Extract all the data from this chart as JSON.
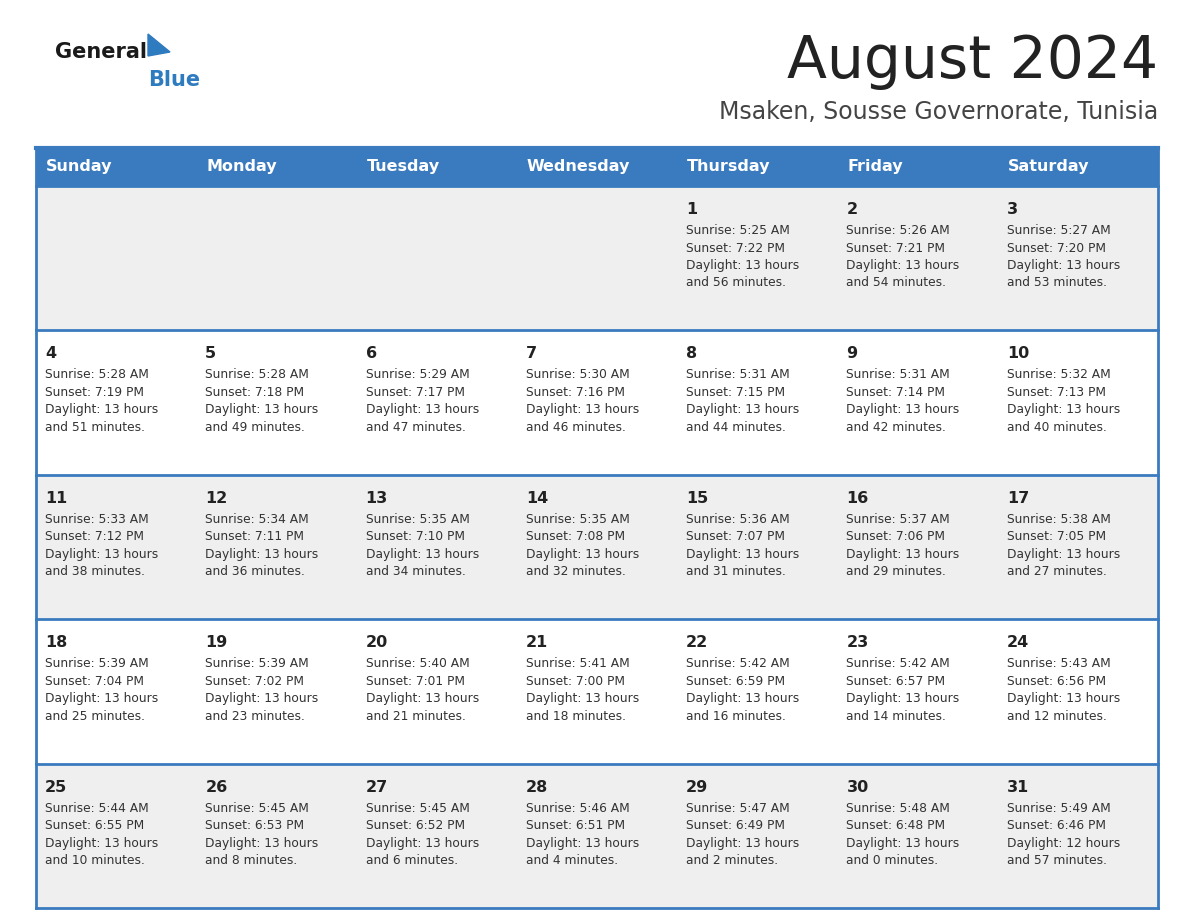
{
  "title": "August 2024",
  "subtitle": "Msaken, Sousse Governorate, Tunisia",
  "days_of_week": [
    "Sunday",
    "Monday",
    "Tuesday",
    "Wednesday",
    "Thursday",
    "Friday",
    "Saturday"
  ],
  "header_bg": "#3a7bbf",
  "header_text": "#ffffff",
  "row_bg_light": "#efefef",
  "row_bg_white": "#ffffff",
  "day_num_color": "#222222",
  "info_color": "#333333",
  "divider_color": "#3a7bbf",
  "title_color": "#222222",
  "subtitle_color": "#444444",
  "logo_color_general": "#1a1a1a",
  "logo_color_blue": "#2e7bbf",
  "logo_triangle_color": "#2e7bbf",
  "cal_data": [
    {
      "day": 1,
      "col": 4,
      "row": 0,
      "sunrise": "5:25 AM",
      "sunset": "7:22 PM",
      "daylight": "13 hours and 56 minutes."
    },
    {
      "day": 2,
      "col": 5,
      "row": 0,
      "sunrise": "5:26 AM",
      "sunset": "7:21 PM",
      "daylight": "13 hours and 54 minutes."
    },
    {
      "day": 3,
      "col": 6,
      "row": 0,
      "sunrise": "5:27 AM",
      "sunset": "7:20 PM",
      "daylight": "13 hours and 53 minutes."
    },
    {
      "day": 4,
      "col": 0,
      "row": 1,
      "sunrise": "5:28 AM",
      "sunset": "7:19 PM",
      "daylight": "13 hours and 51 minutes."
    },
    {
      "day": 5,
      "col": 1,
      "row": 1,
      "sunrise": "5:28 AM",
      "sunset": "7:18 PM",
      "daylight": "13 hours and 49 minutes."
    },
    {
      "day": 6,
      "col": 2,
      "row": 1,
      "sunrise": "5:29 AM",
      "sunset": "7:17 PM",
      "daylight": "13 hours and 47 minutes."
    },
    {
      "day": 7,
      "col": 3,
      "row": 1,
      "sunrise": "5:30 AM",
      "sunset": "7:16 PM",
      "daylight": "13 hours and 46 minutes."
    },
    {
      "day": 8,
      "col": 4,
      "row": 1,
      "sunrise": "5:31 AM",
      "sunset": "7:15 PM",
      "daylight": "13 hours and 44 minutes."
    },
    {
      "day": 9,
      "col": 5,
      "row": 1,
      "sunrise": "5:31 AM",
      "sunset": "7:14 PM",
      "daylight": "13 hours and 42 minutes."
    },
    {
      "day": 10,
      "col": 6,
      "row": 1,
      "sunrise": "5:32 AM",
      "sunset": "7:13 PM",
      "daylight": "13 hours and 40 minutes."
    },
    {
      "day": 11,
      "col": 0,
      "row": 2,
      "sunrise": "5:33 AM",
      "sunset": "7:12 PM",
      "daylight": "13 hours and 38 minutes."
    },
    {
      "day": 12,
      "col": 1,
      "row": 2,
      "sunrise": "5:34 AM",
      "sunset": "7:11 PM",
      "daylight": "13 hours and 36 minutes."
    },
    {
      "day": 13,
      "col": 2,
      "row": 2,
      "sunrise": "5:35 AM",
      "sunset": "7:10 PM",
      "daylight": "13 hours and 34 minutes."
    },
    {
      "day": 14,
      "col": 3,
      "row": 2,
      "sunrise": "5:35 AM",
      "sunset": "7:08 PM",
      "daylight": "13 hours and 32 minutes."
    },
    {
      "day": 15,
      "col": 4,
      "row": 2,
      "sunrise": "5:36 AM",
      "sunset": "7:07 PM",
      "daylight": "13 hours and 31 minutes."
    },
    {
      "day": 16,
      "col": 5,
      "row": 2,
      "sunrise": "5:37 AM",
      "sunset": "7:06 PM",
      "daylight": "13 hours and 29 minutes."
    },
    {
      "day": 17,
      "col": 6,
      "row": 2,
      "sunrise": "5:38 AM",
      "sunset": "7:05 PM",
      "daylight": "13 hours and 27 minutes."
    },
    {
      "day": 18,
      "col": 0,
      "row": 3,
      "sunrise": "5:39 AM",
      "sunset": "7:04 PM",
      "daylight": "13 hours and 25 minutes."
    },
    {
      "day": 19,
      "col": 1,
      "row": 3,
      "sunrise": "5:39 AM",
      "sunset": "7:02 PM",
      "daylight": "13 hours and 23 minutes."
    },
    {
      "day": 20,
      "col": 2,
      "row": 3,
      "sunrise": "5:40 AM",
      "sunset": "7:01 PM",
      "daylight": "13 hours and 21 minutes."
    },
    {
      "day": 21,
      "col": 3,
      "row": 3,
      "sunrise": "5:41 AM",
      "sunset": "7:00 PM",
      "daylight": "13 hours and 18 minutes."
    },
    {
      "day": 22,
      "col": 4,
      "row": 3,
      "sunrise": "5:42 AM",
      "sunset": "6:59 PM",
      "daylight": "13 hours and 16 minutes."
    },
    {
      "day": 23,
      "col": 5,
      "row": 3,
      "sunrise": "5:42 AM",
      "sunset": "6:57 PM",
      "daylight": "13 hours and 14 minutes."
    },
    {
      "day": 24,
      "col": 6,
      "row": 3,
      "sunrise": "5:43 AM",
      "sunset": "6:56 PM",
      "daylight": "13 hours and 12 minutes."
    },
    {
      "day": 25,
      "col": 0,
      "row": 4,
      "sunrise": "5:44 AM",
      "sunset": "6:55 PM",
      "daylight": "13 hours and 10 minutes."
    },
    {
      "day": 26,
      "col": 1,
      "row": 4,
      "sunrise": "5:45 AM",
      "sunset": "6:53 PM",
      "daylight": "13 hours and 8 minutes."
    },
    {
      "day": 27,
      "col": 2,
      "row": 4,
      "sunrise": "5:45 AM",
      "sunset": "6:52 PM",
      "daylight": "13 hours and 6 minutes."
    },
    {
      "day": 28,
      "col": 3,
      "row": 4,
      "sunrise": "5:46 AM",
      "sunset": "6:51 PM",
      "daylight": "13 hours and 4 minutes."
    },
    {
      "day": 29,
      "col": 4,
      "row": 4,
      "sunrise": "5:47 AM",
      "sunset": "6:49 PM",
      "daylight": "13 hours and 2 minutes."
    },
    {
      "day": 30,
      "col": 5,
      "row": 4,
      "sunrise": "5:48 AM",
      "sunset": "6:48 PM",
      "daylight": "13 hours and 0 minutes."
    },
    {
      "day": 31,
      "col": 6,
      "row": 4,
      "sunrise": "5:49 AM",
      "sunset": "6:46 PM",
      "daylight": "12 hours and 57 minutes."
    }
  ]
}
